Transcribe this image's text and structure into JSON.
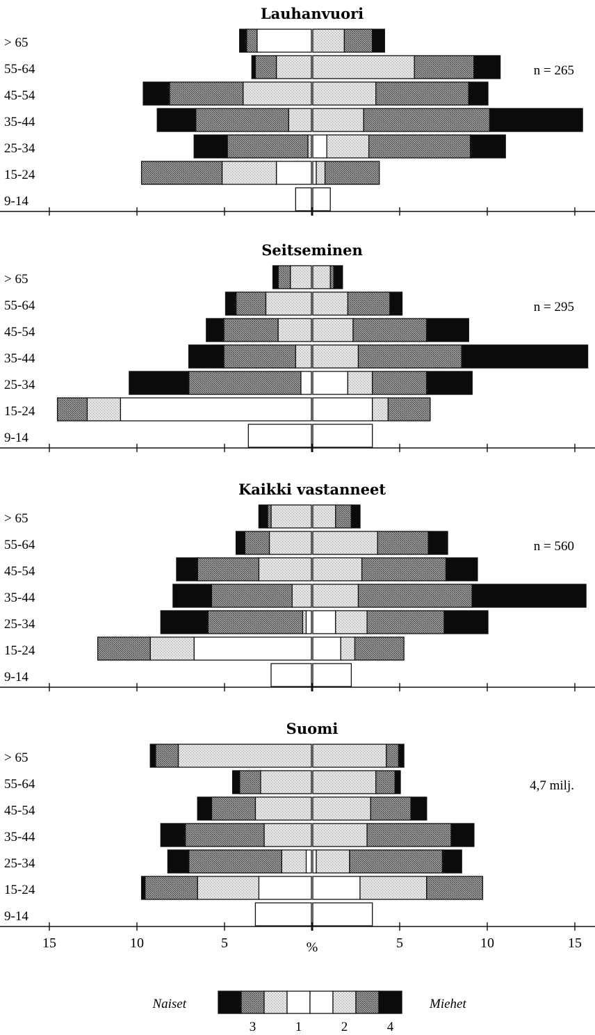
{
  "chart_data": {
    "type": "bar",
    "subtype": "population-pyramid",
    "unit_label": "%",
    "x_ticks": [
      "15",
      "10",
      "5",
      "5",
      "10",
      "15"
    ],
    "xlim": [
      -15,
      15
    ],
    "age_groups": [
      "> 65",
      "55-64",
      "45-54",
      "35-44",
      "25-34",
      "15-24",
      "9-14"
    ],
    "legend": {
      "left_label": "Naiset",
      "right_label": "Miehet",
      "codes": [
        "3",
        "1",
        "2",
        "4"
      ],
      "colors": {
        "1": "#ffffff",
        "2": "#d6d6d6",
        "3": "#8e8e8e",
        "4": "#0b0b0b"
      }
    },
    "panels": [
      {
        "title": "Lauhanvuori",
        "note": "n = 265",
        "women": [
          {
            "age": "> 65",
            "segments": [
              3.1,
              0,
              0.6,
              0.4
            ]
          },
          {
            "age": "55-64",
            "segments": [
              0,
              2.0,
              1.2,
              0.2
            ]
          },
          {
            "age": "45-54",
            "segments": [
              0,
              3.9,
              4.2,
              1.5
            ]
          },
          {
            "age": "35-44",
            "segments": [
              0,
              1.3,
              5.3,
              2.2
            ]
          },
          {
            "age": "25-34",
            "segments": [
              0,
              0.2,
              4.6,
              1.9
            ]
          },
          {
            "age": "15-24",
            "segments": [
              2.0,
              3.1,
              4.6,
              0
            ]
          },
          {
            "age": "9-14",
            "segments": [
              0.9,
              0,
              0,
              0
            ]
          }
        ],
        "men": [
          {
            "age": "> 65",
            "segments": [
              0,
              1.8,
              1.6,
              0.7
            ]
          },
          {
            "age": "55-64",
            "segments": [
              0,
              5.8,
              3.4,
              1.5
            ]
          },
          {
            "age": "45-54",
            "segments": [
              0,
              3.6,
              5.3,
              1.1
            ]
          },
          {
            "age": "35-44",
            "segments": [
              0,
              2.9,
              7.2,
              5.3
            ]
          },
          {
            "age": "25-34",
            "segments": [
              0.8,
              2.4,
              5.8,
              2.0
            ]
          },
          {
            "age": "15-24",
            "segments": [
              0.2,
              0.5,
              3.1,
              0
            ]
          },
          {
            "age": "9-14",
            "segments": [
              1.0,
              0,
              0,
              0
            ]
          }
        ]
      },
      {
        "title": "Seitseminen",
        "note": "n = 295",
        "women": [
          {
            "age": "> 65",
            "segments": [
              0,
              1.2,
              0.7,
              0.3
            ]
          },
          {
            "age": "55-64",
            "segments": [
              0,
              2.6,
              1.7,
              0.6
            ]
          },
          {
            "age": "45-54",
            "segments": [
              0,
              1.9,
              3.1,
              1.0
            ]
          },
          {
            "age": "35-44",
            "segments": [
              0,
              0.9,
              4.1,
              2.0
            ]
          },
          {
            "age": "25-34",
            "segments": [
              0.6,
              0,
              6.4,
              3.4
            ]
          },
          {
            "age": "15-24",
            "segments": [
              10.9,
              1.9,
              1.7,
              0
            ]
          },
          {
            "age": "9-14",
            "segments": [
              3.6,
              0,
              0,
              0
            ]
          }
        ],
        "men": [
          {
            "age": "> 65",
            "segments": [
              0,
              1.0,
              0.2,
              0.5
            ]
          },
          {
            "age": "55-64",
            "segments": [
              0,
              2.0,
              2.4,
              0.7
            ]
          },
          {
            "age": "45-54",
            "segments": [
              0,
              2.3,
              4.2,
              2.4
            ]
          },
          {
            "age": "35-44",
            "segments": [
              0,
              2.6,
              5.9,
              7.2
            ]
          },
          {
            "age": "25-34",
            "segments": [
              2.0,
              1.4,
              3.1,
              2.6
            ]
          },
          {
            "age": "15-24",
            "segments": [
              3.4,
              0.9,
              2.4,
              0
            ]
          },
          {
            "age": "9-14",
            "segments": [
              3.4,
              0,
              0,
              0
            ]
          }
        ]
      },
      {
        "title": "Kaikki vastanneet",
        "note": "n = 560",
        "women": [
          {
            "age": "> 65",
            "segments": [
              0,
              2.3,
              0.2,
              0.5
            ]
          },
          {
            "age": "55-64",
            "segments": [
              0,
              2.4,
              1.4,
              0.5
            ]
          },
          {
            "age": "45-54",
            "segments": [
              0,
              3.0,
              3.5,
              1.2
            ]
          },
          {
            "age": "35-44",
            "segments": [
              0,
              1.1,
              4.6,
              2.2
            ]
          },
          {
            "age": "25-34",
            "segments": [
              0.3,
              0.2,
              5.4,
              2.7
            ]
          },
          {
            "age": "15-24",
            "segments": [
              6.7,
              2.5,
              3.0,
              0
            ]
          },
          {
            "age": "9-14",
            "segments": [
              2.3,
              0,
              0,
              0
            ]
          }
        ],
        "men": [
          {
            "age": "> 65",
            "segments": [
              0,
              1.3,
              0.9,
              0.5
            ]
          },
          {
            "age": "55-64",
            "segments": [
              0,
              3.7,
              2.9,
              1.1
            ]
          },
          {
            "age": "45-54",
            "segments": [
              0,
              2.8,
              4.8,
              1.8
            ]
          },
          {
            "age": "35-44",
            "segments": [
              0,
              2.6,
              6.5,
              6.5
            ]
          },
          {
            "age": "25-34",
            "segments": [
              1.3,
              1.8,
              4.4,
              2.5
            ]
          },
          {
            "age": "15-24",
            "segments": [
              1.6,
              0.8,
              2.8,
              0
            ]
          },
          {
            "age": "9-14",
            "segments": [
              2.2,
              0,
              0,
              0
            ]
          }
        ]
      },
      {
        "title": "Suomi",
        "note": "4,7 milj.",
        "women": [
          {
            "age": "> 65",
            "segments": [
              0,
              7.6,
              1.3,
              0.3
            ]
          },
          {
            "age": "55-64",
            "segments": [
              0,
              2.9,
              1.2,
              0.4
            ]
          },
          {
            "age": "45-54",
            "segments": [
              0,
              3.2,
              2.5,
              0.8
            ]
          },
          {
            "age": "35-44",
            "segments": [
              0,
              2.7,
              4.5,
              1.4
            ]
          },
          {
            "age": "25-34",
            "segments": [
              0.3,
              1.4,
              5.3,
              1.2
            ]
          },
          {
            "age": "15-24",
            "segments": [
              3.0,
              3.5,
              3.0,
              0.2
            ]
          },
          {
            "age": "9-14",
            "segments": [
              3.2,
              0,
              0,
              0
            ]
          }
        ],
        "men": [
          {
            "age": "> 65",
            "segments": [
              0,
              4.2,
              0.7,
              0.3
            ]
          },
          {
            "age": "55-64",
            "segments": [
              0,
              3.6,
              1.1,
              0.3
            ]
          },
          {
            "age": "45-54",
            "segments": [
              0,
              3.3,
              2.3,
              0.9
            ]
          },
          {
            "age": "35-44",
            "segments": [
              0,
              3.1,
              4.8,
              1.3
            ]
          },
          {
            "age": "25-34",
            "segments": [
              0.2,
              1.9,
              5.3,
              1.1
            ]
          },
          {
            "age": "15-24",
            "segments": [
              2.7,
              3.8,
              3.2,
              0
            ]
          },
          {
            "age": "9-14",
            "segments": [
              3.4,
              0,
              0,
              0
            ]
          }
        ]
      }
    ]
  }
}
